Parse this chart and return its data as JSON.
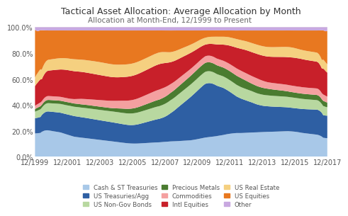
{
  "title": "Tactical Asset Allocation: Average Allocation by Month",
  "subtitle": "Allocation at Month-End, 12/1999 to Present",
  "ytick_labels": [
    "0.0%",
    "20.0%",
    "40.0%",
    "60.0%",
    "80.0%",
    "100.0%"
  ],
  "xtick_labels": [
    "12/1999",
    "12/2001",
    "12/2003",
    "12/2005",
    "12/2007",
    "12/2009",
    "12/2011",
    "12/2013",
    "12/2015",
    "12/2017"
  ],
  "categories": [
    "Cash & ST Treasuries",
    "US Treasuries/Agg",
    "US Non-Gov Bonds",
    "Precious Metals",
    "Commodities",
    "Intl Equities",
    "US Real Estate",
    "US Equities",
    "Other"
  ],
  "colors": [
    "#a8c8e8",
    "#2e5fa3",
    "#b8d8a0",
    "#4a7c30",
    "#f4a0a0",
    "#c8202a",
    "#f5d080",
    "#e87820",
    "#c8a8e0"
  ],
  "background_color": "#ffffff",
  "title_fontsize": 9,
  "subtitle_fontsize": 7.5,
  "tick_fontsize": 7
}
